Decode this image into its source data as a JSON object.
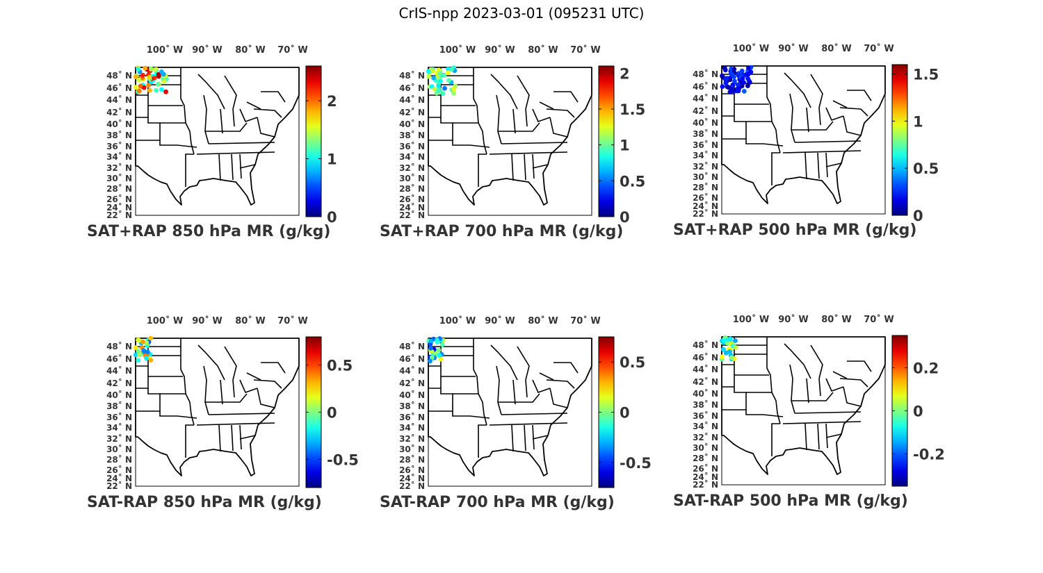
{
  "figure": {
    "title": "CrIS-npp 2023-03-01 (095231 UTC)"
  },
  "lon_ticks": [
    "100˚ W",
    "90˚ W",
    "80˚ W",
    "70˚ W"
  ],
  "lat_ticks": [
    "48˚ N",
    "46˚ N",
    "44˚ N",
    "42˚ N",
    "40˚ N",
    "38˚ N",
    "36˚ N",
    "34˚ N",
    "32˚ N",
    "30˚ N",
    "28˚ N",
    "26˚ N",
    "24˚ N",
    "22˚ N"
  ],
  "colormap": "jet",
  "panels": [
    {
      "label": "SAT+RAP 850 hPa MR (g/kg)",
      "clim": [
        0,
        2.6
      ],
      "cbar_ticks": [
        {
          "v": 0,
          "t": "0"
        },
        {
          "v": 1,
          "t": "1"
        },
        {
          "v": 2,
          "t": "2"
        }
      ],
      "field_color_range": [
        0.7,
        2.6
      ]
    },
    {
      "label": "SAT+RAP 700 hPa MR (g/kg)",
      "clim": [
        0,
        2.1
      ],
      "cbar_ticks": [
        {
          "v": 0,
          "t": "0"
        },
        {
          "v": 0.5,
          "t": "0.5"
        },
        {
          "v": 1,
          "t": "1"
        },
        {
          "v": 1.5,
          "t": "1.5"
        },
        {
          "v": 2,
          "t": "2"
        }
      ],
      "field_color_range": [
        0.5,
        1.3
      ]
    },
    {
      "label": "SAT+RAP 500 hPa MR (g/kg)",
      "clim": [
        0,
        1.6
      ],
      "cbar_ticks": [
        {
          "v": 0,
          "t": "0"
        },
        {
          "v": 0.5,
          "t": "0.5"
        },
        {
          "v": 1,
          "t": "1"
        },
        {
          "v": 1.5,
          "t": "1.5"
        }
      ],
      "field_color_range": [
        0.05,
        0.35
      ]
    },
    {
      "label": "SAT-RAP 850 hPa MR (g/kg)",
      "clim": [
        -0.8,
        0.8
      ],
      "cbar_ticks": [
        {
          "v": -0.5,
          "t": "-0.5"
        },
        {
          "v": 0,
          "t": "0"
        },
        {
          "v": 0.5,
          "t": "0.5"
        }
      ],
      "field_color_range": [
        -0.5,
        0.4
      ]
    },
    {
      "label": "SAT-RAP 700 hPa MR (g/kg)",
      "clim": [
        -0.75,
        0.75
      ],
      "cbar_ticks": [
        {
          "v": -0.5,
          "t": "-0.5"
        },
        {
          "v": 0,
          "t": "0"
        },
        {
          "v": 0.5,
          "t": "0.5"
        }
      ],
      "field_color_range": [
        -0.6,
        0.2
      ]
    },
    {
      "label": "SAT-RAP 500 hPa MR (g/kg)",
      "clim": [
        -0.35,
        0.35
      ],
      "cbar_ticks": [
        {
          "v": -0.2,
          "t": "-0.2"
        },
        {
          "v": 0,
          "t": "0"
        },
        {
          "v": 0.2,
          "t": "0.2"
        }
      ],
      "field_color_range": [
        -0.15,
        0.1
      ]
    }
  ]
}
